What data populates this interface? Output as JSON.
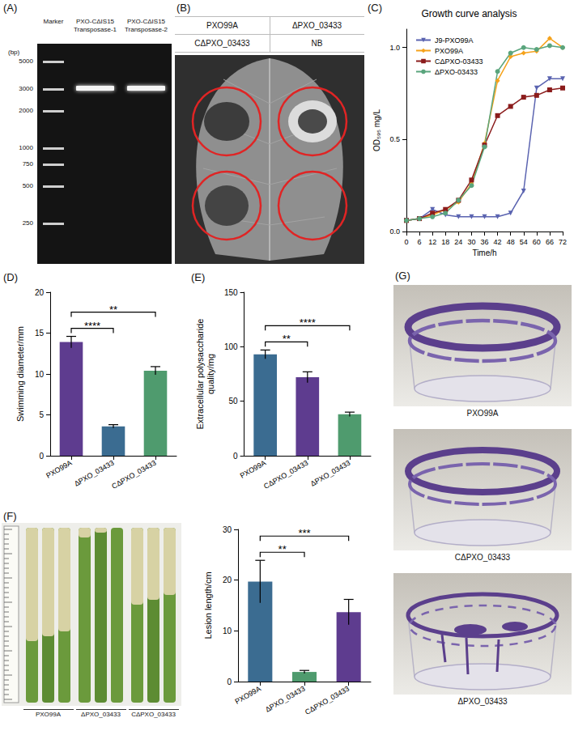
{
  "chart_data": [
    {
      "panel": "(C)",
      "type": "line",
      "title": "Growth curve analysis",
      "x_label": "Time/h",
      "y_label": "OD₅₉₅ mg/L",
      "x": [
        0,
        6,
        12,
        18,
        24,
        30,
        36,
        42,
        48,
        54,
        60,
        66,
        72
      ],
      "series": [
        {
          "name": "J9-PXO99A",
          "color": "#5a63b0",
          "marker": "triangle-down",
          "values": [
            0.06,
            0.07,
            0.12,
            0.09,
            0.08,
            0.08,
            0.08,
            0.08,
            0.1,
            0.22,
            0.78,
            0.83,
            0.83
          ]
        },
        {
          "name": "PXO99A",
          "color": "#f5a21b",
          "marker": "diamond",
          "values": [
            0.06,
            0.07,
            0.09,
            0.12,
            0.16,
            0.26,
            0.48,
            0.82,
            0.95,
            0.97,
            0.98,
            1.05,
            1.0
          ]
        },
        {
          "name": "CΔPXO-03433",
          "color": "#8b1c1c",
          "marker": "square",
          "values": [
            0.06,
            0.07,
            0.1,
            0.12,
            0.17,
            0.28,
            0.47,
            0.63,
            0.68,
            0.73,
            0.74,
            0.77,
            0.78
          ]
        },
        {
          "name": "ΔPXO-03433",
          "color": "#5aa57d",
          "marker": "circle",
          "values": [
            0.06,
            0.07,
            0.08,
            0.1,
            0.17,
            0.25,
            0.46,
            0.87,
            0.97,
            1.0,
            0.99,
            1.01,
            1.0
          ]
        }
      ],
      "xlim": [
        0,
        72
      ],
      "xticks": [
        0,
        6,
        12,
        18,
        24,
        30,
        36,
        42,
        48,
        54,
        60,
        66,
        72
      ],
      "ylim": [
        0,
        1.1
      ],
      "yticks": [
        {
          "value": 0,
          "label": "0.0"
        },
        {
          "value": 0.5,
          "label": "0.5"
        },
        {
          "value": 1,
          "label": "1.0"
        }
      ],
      "legend": "top-left",
      "grid": false
    },
    {
      "panel": "(D)",
      "type": "bar",
      "y_label": "Swimming diameter/mm",
      "categories": [
        "PXO99A",
        "ΔPXO_03433",
        "CΔPXO_03433"
      ],
      "values": [
        13.9,
        3.6,
        10.4
      ],
      "errors": [
        0.7,
        0.2,
        0.5
      ],
      "colors": [
        "#5e3c8f",
        "#3b6c91",
        "#4f9b6e"
      ],
      "ylim": [
        0,
        20
      ],
      "yticks": [
        0,
        5,
        10,
        15,
        20
      ],
      "annotations": [
        {
          "text": "****",
          "between": [
            0,
            1
          ]
        },
        {
          "text": "**",
          "between": [
            0,
            2
          ]
        }
      ],
      "grid": false
    },
    {
      "panel": "(E)",
      "type": "bar",
      "y_label": "Extracellular polysaccharide quality/mg",
      "categories": [
        "PXO99A",
        "CΔPXO_03433",
        "ΔPXO_03433"
      ],
      "values": [
        93,
        72,
        38
      ],
      "errors": [
        4,
        5,
        2
      ],
      "colors": [
        "#3b6c91",
        "#5e3c8f",
        "#4f9b6e"
      ],
      "ylim": [
        0,
        150
      ],
      "yticks": [
        0,
        50,
        100,
        150
      ],
      "annotations": [
        {
          "text": "**",
          "between": [
            0,
            1
          ]
        },
        {
          "text": "****",
          "between": [
            0,
            2
          ]
        }
      ],
      "grid": false
    },
    {
      "type": "bar",
      "y_label": "Lesion length/cm",
      "categories": [
        "PXO99A",
        "ΔPXO_03433",
        "CΔPXO_03433"
      ],
      "values": [
        19.7,
        1.9,
        13.7
      ],
      "errors": [
        4.2,
        0.3,
        2.5
      ],
      "colors": [
        "#3b6c91",
        "#4f9b6e",
        "#5e3c8f"
      ],
      "ylim": [
        0,
        30
      ],
      "yticks": [
        0,
        10,
        20,
        30
      ],
      "annotations": [
        {
          "text": "**",
          "between": [
            0,
            1
          ]
        },
        {
          "text": "***",
          "between": [
            0,
            2
          ]
        }
      ],
      "grid": false
    }
  ],
  "gel": {
    "panel": "(A)",
    "unit": "(bp)",
    "lanes": [
      "Marker",
      "PXO-CΔIS15 Transposase-1",
      "PXO-CΔIS15 Transposase-2"
    ],
    "ladder": [
      5000,
      3000,
      2000,
      1000,
      750,
      500,
      250
    ]
  },
  "leaf": {
    "panel": "(B)",
    "labels": [
      [
        "PXO99A",
        "ΔPXO_03433"
      ],
      [
        "CΔPXO_03433",
        "NB"
      ]
    ]
  },
  "leaves": {
    "panel": "(F)",
    "groups": [
      "PXO99A",
      "ΔPXO_03433",
      "CΔPXO_03433"
    ]
  },
  "biofilm": {
    "panel": "(G)",
    "labels": [
      "PXO99A",
      "CΔPXO_03433",
      "ΔPXO_03433"
    ]
  }
}
